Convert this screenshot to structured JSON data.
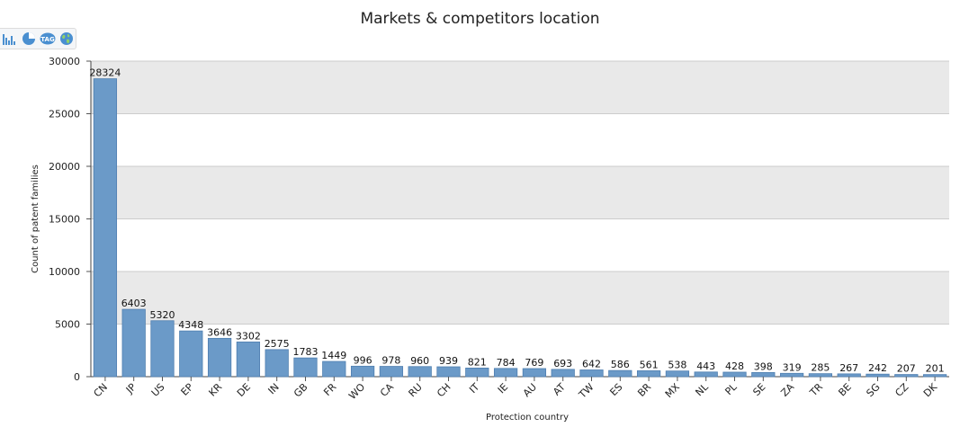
{
  "title": "Markets & competitors location",
  "toolbar": {
    "icons": [
      "bar-chart-icon",
      "pie-chart-icon",
      "tag-cloud-icon",
      "globe-icon"
    ]
  },
  "chart_data": {
    "type": "bar",
    "title": "Markets & competitors location",
    "xlabel": "Protection country",
    "ylabel": "Count of patent families",
    "ylim": [
      0,
      30000
    ],
    "yticks": [
      0,
      5000,
      10000,
      15000,
      20000,
      25000,
      30000
    ],
    "grid": "alternating horizontal bands",
    "bar_color": "#6b9ac8",
    "categories": [
      "CN",
      "JP",
      "US",
      "EP",
      "KR",
      "DE",
      "IN",
      "GB",
      "FR",
      "WO",
      "CA",
      "RU",
      "CH",
      "IT",
      "IE",
      "AU",
      "AT",
      "TW",
      "ES",
      "BR",
      "MX",
      "NL",
      "PL",
      "SE",
      "ZA",
      "TR",
      "BE",
      "SG",
      "CZ",
      "DK"
    ],
    "values": [
      28324,
      6403,
      5320,
      4348,
      3646,
      3302,
      2575,
      1783,
      1449,
      996,
      978,
      960,
      939,
      821,
      784,
      769,
      693,
      642,
      586,
      561,
      538,
      443,
      428,
      398,
      319,
      285,
      267,
      242,
      207,
      201
    ]
  }
}
